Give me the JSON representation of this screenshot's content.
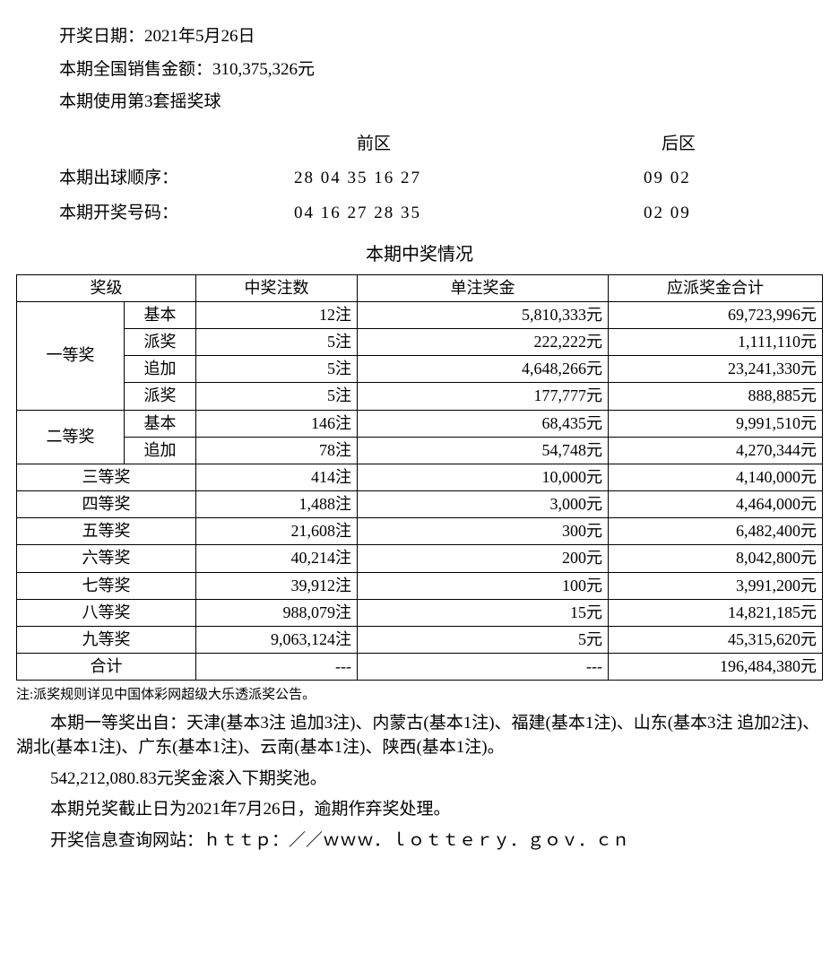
{
  "header": {
    "date_line": "开奖日期：2021年5月26日",
    "sales_line": "本期全国销售金额：310,375,326元",
    "ballset_line": "本期使用第3套摇奖球"
  },
  "numbers": {
    "front_header": "前区",
    "back_header": "后区",
    "draw_order_label": "本期出球顺序：",
    "draw_order_front": "28 04 35 16 27",
    "draw_order_back": "09 02",
    "winning_label": "本期开奖号码：",
    "winning_front": "04 16 27 28 35",
    "winning_back": "02 09"
  },
  "table": {
    "title": "本期中奖情况",
    "headers": {
      "level": "奖级",
      "count": "中奖注数",
      "unit": "单注奖金",
      "total": "应派奖金合计"
    },
    "first": {
      "label": "一等奖",
      "rows": [
        {
          "sub": "基本",
          "count": "12注",
          "unit": "5,810,333元",
          "total": "69,723,996元"
        },
        {
          "sub": "派奖",
          "count": "5注",
          "unit": "222,222元",
          "total": "1,111,110元"
        },
        {
          "sub": "追加",
          "count": "5注",
          "unit": "4,648,266元",
          "total": "23,241,330元"
        },
        {
          "sub": "派奖",
          "count": "5注",
          "unit": "177,777元",
          "total": "888,885元"
        }
      ]
    },
    "second": {
      "label": "二等奖",
      "rows": [
        {
          "sub": "基本",
          "count": "146注",
          "unit": "68,435元",
          "total": "9,991,510元"
        },
        {
          "sub": "追加",
          "count": "78注",
          "unit": "54,748元",
          "total": "4,270,344元"
        }
      ]
    },
    "simple": [
      {
        "label": "三等奖",
        "count": "414注",
        "unit": "10,000元",
        "total": "4,140,000元"
      },
      {
        "label": "四等奖",
        "count": "1,488注",
        "unit": "3,000元",
        "total": "4,464,000元"
      },
      {
        "label": "五等奖",
        "count": "21,608注",
        "unit": "300元",
        "total": "6,482,400元"
      },
      {
        "label": "六等奖",
        "count": "40,214注",
        "unit": "200元",
        "total": "8,042,800元"
      },
      {
        "label": "七等奖",
        "count": "39,912注",
        "unit": "100元",
        "total": "3,991,200元"
      },
      {
        "label": "八等奖",
        "count": "988,079注",
        "unit": "15元",
        "total": "14,821,185元"
      },
      {
        "label": "九等奖",
        "count": "9,063,124注",
        "unit": "5元",
        "total": "45,315,620元"
      }
    ],
    "sum": {
      "label": "合计",
      "count": "---",
      "unit": "---",
      "total": "196,484,380元"
    }
  },
  "footer": {
    "note": "注:派奖规则详见中国体彩网超级大乐透派奖公告。",
    "winners": "本期一等奖出自：天津(基本3注 追加3注)、内蒙古(基本1注)、福建(基本1注)、山东(基本3注 追加2注)、湖北(基本1注)、广东(基本1注)、云南(基本1注)、陕西(基本1注)。",
    "rollover": "542,212,080.83元奖金滚入下期奖池。",
    "deadline": "本期兑奖截止日为2021年7月26日，逾期作弃奖处理。",
    "website": "开奖信息查询网站：ｈｔｔｐ：／／ｗｗｗ．ｌｏｔｔｅｒｙ．ｇｏｖ．ｃｎ"
  },
  "style": {
    "text_color": "#000000",
    "background_color": "#ffffff",
    "border_color": "#000000",
    "body_fontsize": 18,
    "title_fontsize": 20,
    "footnote_fontsize": 15
  }
}
